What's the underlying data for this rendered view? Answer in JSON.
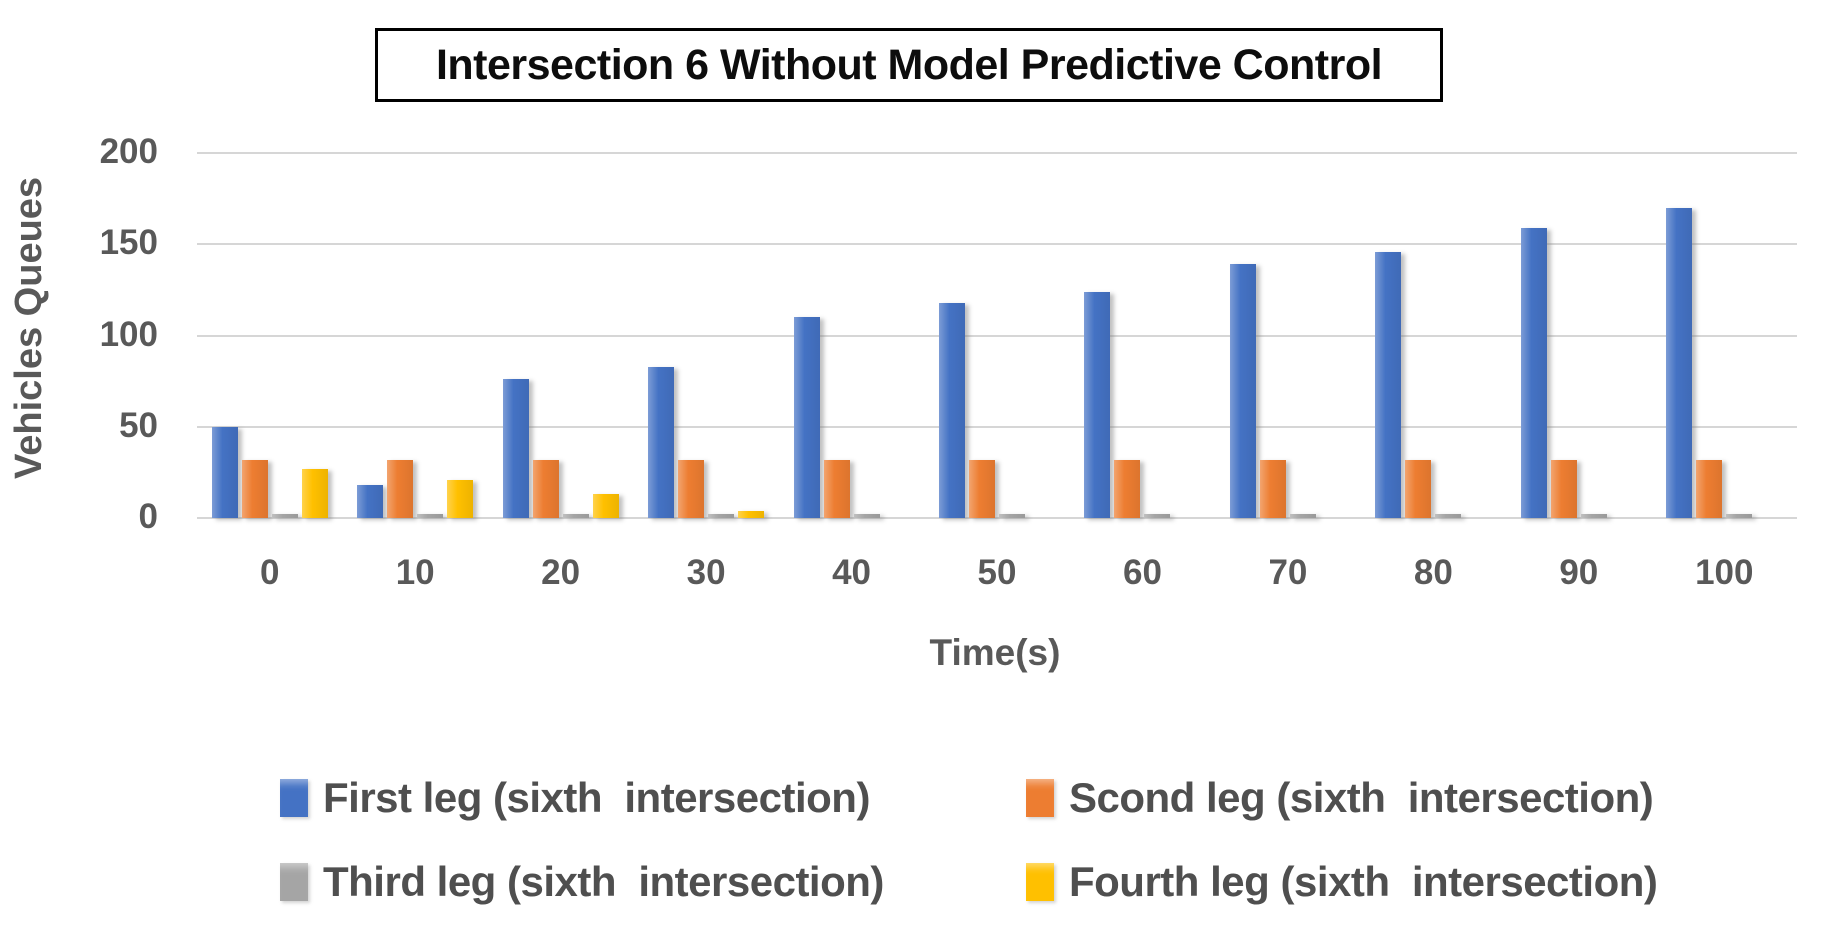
{
  "title": "Intersection 6 Without Model Predictive Control",
  "chart_data": {
    "type": "bar",
    "title": "Intersection 6 Without Model Predictive Control",
    "xlabel": "Time(s)",
    "ylabel": "Vehicles Queues",
    "ylim": [
      0,
      200
    ],
    "yticks": [
      0,
      50,
      100,
      150,
      200
    ],
    "grid": true,
    "legend_position": "bottom",
    "categories": [
      "0",
      "10",
      "20",
      "30",
      "40",
      "50",
      "60",
      "70",
      "80",
      "90",
      "100"
    ],
    "series": [
      {
        "name": "First leg (sixth  intersection)",
        "color": "#4472C4",
        "values": [
          50,
          18,
          76,
          83,
          110,
          118,
          124,
          139,
          146,
          159,
          170
        ]
      },
      {
        "name": "Scond leg (sixth  intersection)",
        "color": "#ED7D31",
        "values": [
          32,
          32,
          32,
          32,
          32,
          32,
          32,
          32,
          32,
          32,
          32
        ]
      },
      {
        "name": "Third leg (sixth  intersection)",
        "color": "#A5A5A5",
        "values": [
          2,
          2,
          2,
          2,
          2,
          2,
          2,
          2,
          2,
          2,
          2
        ]
      },
      {
        "name": "Fourth leg (sixth  intersection)",
        "color": "#FFC000",
        "values": [
          27,
          21,
          13,
          4,
          0,
          0,
          0,
          0,
          0,
          0,
          0
        ]
      }
    ]
  },
  "colors": {
    "gridline": "#d6d6d6",
    "axis_text": "#595959",
    "legend_text": "#4f4f4f",
    "title_text": "#0d0d0d"
  }
}
